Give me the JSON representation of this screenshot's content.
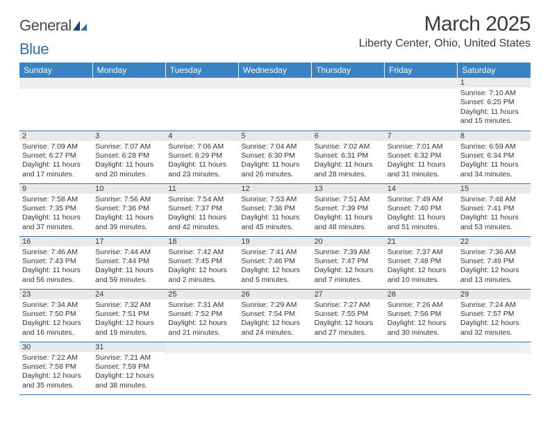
{
  "brand": {
    "name_a": "General",
    "name_b": "Blue"
  },
  "title": "March 2025",
  "location": "Liberty Center, Ohio, United States",
  "colors": {
    "header_bg": "#3b82c4",
    "header_text": "#ffffff",
    "border": "#2f6fb0",
    "daynum_bg": "#e9e9e9",
    "text": "#333333",
    "brand_gray": "#4a4a4a",
    "brand_blue": "#2f6fb0"
  },
  "day_headers": [
    "Sunday",
    "Monday",
    "Tuesday",
    "Wednesday",
    "Thursday",
    "Friday",
    "Saturday"
  ],
  "weeks": [
    [
      null,
      null,
      null,
      null,
      null,
      null,
      {
        "d": "1",
        "sr": "Sunrise: 7:10 AM",
        "ss": "Sunset: 6:25 PM",
        "dl1": "Daylight: 11 hours",
        "dl2": "and 15 minutes."
      }
    ],
    [
      {
        "d": "2",
        "sr": "Sunrise: 7:09 AM",
        "ss": "Sunset: 6:27 PM",
        "dl1": "Daylight: 11 hours",
        "dl2": "and 17 minutes."
      },
      {
        "d": "3",
        "sr": "Sunrise: 7:07 AM",
        "ss": "Sunset: 6:28 PM",
        "dl1": "Daylight: 11 hours",
        "dl2": "and 20 minutes."
      },
      {
        "d": "4",
        "sr": "Sunrise: 7:06 AM",
        "ss": "Sunset: 6:29 PM",
        "dl1": "Daylight: 11 hours",
        "dl2": "and 23 minutes."
      },
      {
        "d": "5",
        "sr": "Sunrise: 7:04 AM",
        "ss": "Sunset: 6:30 PM",
        "dl1": "Daylight: 11 hours",
        "dl2": "and 26 minutes."
      },
      {
        "d": "6",
        "sr": "Sunrise: 7:02 AM",
        "ss": "Sunset: 6:31 PM",
        "dl1": "Daylight: 11 hours",
        "dl2": "and 28 minutes."
      },
      {
        "d": "7",
        "sr": "Sunrise: 7:01 AM",
        "ss": "Sunset: 6:32 PM",
        "dl1": "Daylight: 11 hours",
        "dl2": "and 31 minutes."
      },
      {
        "d": "8",
        "sr": "Sunrise: 6:59 AM",
        "ss": "Sunset: 6:34 PM",
        "dl1": "Daylight: 11 hours",
        "dl2": "and 34 minutes."
      }
    ],
    [
      {
        "d": "9",
        "sr": "Sunrise: 7:58 AM",
        "ss": "Sunset: 7:35 PM",
        "dl1": "Daylight: 11 hours",
        "dl2": "and 37 minutes."
      },
      {
        "d": "10",
        "sr": "Sunrise: 7:56 AM",
        "ss": "Sunset: 7:36 PM",
        "dl1": "Daylight: 11 hours",
        "dl2": "and 39 minutes."
      },
      {
        "d": "11",
        "sr": "Sunrise: 7:54 AM",
        "ss": "Sunset: 7:37 PM",
        "dl1": "Daylight: 11 hours",
        "dl2": "and 42 minutes."
      },
      {
        "d": "12",
        "sr": "Sunrise: 7:53 AM",
        "ss": "Sunset: 7:38 PM",
        "dl1": "Daylight: 11 hours",
        "dl2": "and 45 minutes."
      },
      {
        "d": "13",
        "sr": "Sunrise: 7:51 AM",
        "ss": "Sunset: 7:39 PM",
        "dl1": "Daylight: 11 hours",
        "dl2": "and 48 minutes."
      },
      {
        "d": "14",
        "sr": "Sunrise: 7:49 AM",
        "ss": "Sunset: 7:40 PM",
        "dl1": "Daylight: 11 hours",
        "dl2": "and 51 minutes."
      },
      {
        "d": "15",
        "sr": "Sunrise: 7:48 AM",
        "ss": "Sunset: 7:41 PM",
        "dl1": "Daylight: 11 hours",
        "dl2": "and 53 minutes."
      }
    ],
    [
      {
        "d": "16",
        "sr": "Sunrise: 7:46 AM",
        "ss": "Sunset: 7:43 PM",
        "dl1": "Daylight: 11 hours",
        "dl2": "and 56 minutes."
      },
      {
        "d": "17",
        "sr": "Sunrise: 7:44 AM",
        "ss": "Sunset: 7:44 PM",
        "dl1": "Daylight: 11 hours",
        "dl2": "and 59 minutes."
      },
      {
        "d": "18",
        "sr": "Sunrise: 7:42 AM",
        "ss": "Sunset: 7:45 PM",
        "dl1": "Daylight: 12 hours",
        "dl2": "and 2 minutes."
      },
      {
        "d": "19",
        "sr": "Sunrise: 7:41 AM",
        "ss": "Sunset: 7:46 PM",
        "dl1": "Daylight: 12 hours",
        "dl2": "and 5 minutes."
      },
      {
        "d": "20",
        "sr": "Sunrise: 7:39 AM",
        "ss": "Sunset: 7:47 PM",
        "dl1": "Daylight: 12 hours",
        "dl2": "and 7 minutes."
      },
      {
        "d": "21",
        "sr": "Sunrise: 7:37 AM",
        "ss": "Sunset: 7:48 PM",
        "dl1": "Daylight: 12 hours",
        "dl2": "and 10 minutes."
      },
      {
        "d": "22",
        "sr": "Sunrise: 7:36 AM",
        "ss": "Sunset: 7:49 PM",
        "dl1": "Daylight: 12 hours",
        "dl2": "and 13 minutes."
      }
    ],
    [
      {
        "d": "23",
        "sr": "Sunrise: 7:34 AM",
        "ss": "Sunset: 7:50 PM",
        "dl1": "Daylight: 12 hours",
        "dl2": "and 16 minutes."
      },
      {
        "d": "24",
        "sr": "Sunrise: 7:32 AM",
        "ss": "Sunset: 7:51 PM",
        "dl1": "Daylight: 12 hours",
        "dl2": "and 19 minutes."
      },
      {
        "d": "25",
        "sr": "Sunrise: 7:31 AM",
        "ss": "Sunset: 7:52 PM",
        "dl1": "Daylight: 12 hours",
        "dl2": "and 21 minutes."
      },
      {
        "d": "26",
        "sr": "Sunrise: 7:29 AM",
        "ss": "Sunset: 7:54 PM",
        "dl1": "Daylight: 12 hours",
        "dl2": "and 24 minutes."
      },
      {
        "d": "27",
        "sr": "Sunrise: 7:27 AM",
        "ss": "Sunset: 7:55 PM",
        "dl1": "Daylight: 12 hours",
        "dl2": "and 27 minutes."
      },
      {
        "d": "28",
        "sr": "Sunrise: 7:26 AM",
        "ss": "Sunset: 7:56 PM",
        "dl1": "Daylight: 12 hours",
        "dl2": "and 30 minutes."
      },
      {
        "d": "29",
        "sr": "Sunrise: 7:24 AM",
        "ss": "Sunset: 7:57 PM",
        "dl1": "Daylight: 12 hours",
        "dl2": "and 32 minutes."
      }
    ],
    [
      {
        "d": "30",
        "sr": "Sunrise: 7:22 AM",
        "ss": "Sunset: 7:58 PM",
        "dl1": "Daylight: 12 hours",
        "dl2": "and 35 minutes."
      },
      {
        "d": "31",
        "sr": "Sunrise: 7:21 AM",
        "ss": "Sunset: 7:59 PM",
        "dl1": "Daylight: 12 hours",
        "dl2": "and 38 minutes."
      },
      null,
      null,
      null,
      null,
      null
    ]
  ]
}
